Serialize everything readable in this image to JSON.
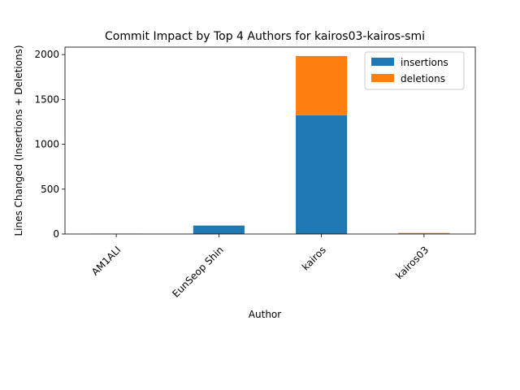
{
  "chart_data": {
    "type": "bar",
    "stacked": true,
    "title": "Commit Impact by Top 4 Authors for kairos03-kairos-smi",
    "xlabel": "Author",
    "ylabel": "Lines Changed (Insertions + Deletions)",
    "categories": [
      "AM1ALI",
      "EunSeop Shin",
      "kairos",
      "kairos03"
    ],
    "series": [
      {
        "name": "insertions",
        "color": "#1f77b4",
        "values": [
          2,
          94,
          1324,
          6
        ]
      },
      {
        "name": "deletions",
        "color": "#ff7f0e",
        "values": [
          1,
          1,
          660,
          6
        ]
      }
    ],
    "ylim": [
      0,
      2083
    ],
    "yticks": [
      0,
      500,
      1000,
      1500,
      2000
    ],
    "grid": false,
    "legend_position": "top-right"
  }
}
